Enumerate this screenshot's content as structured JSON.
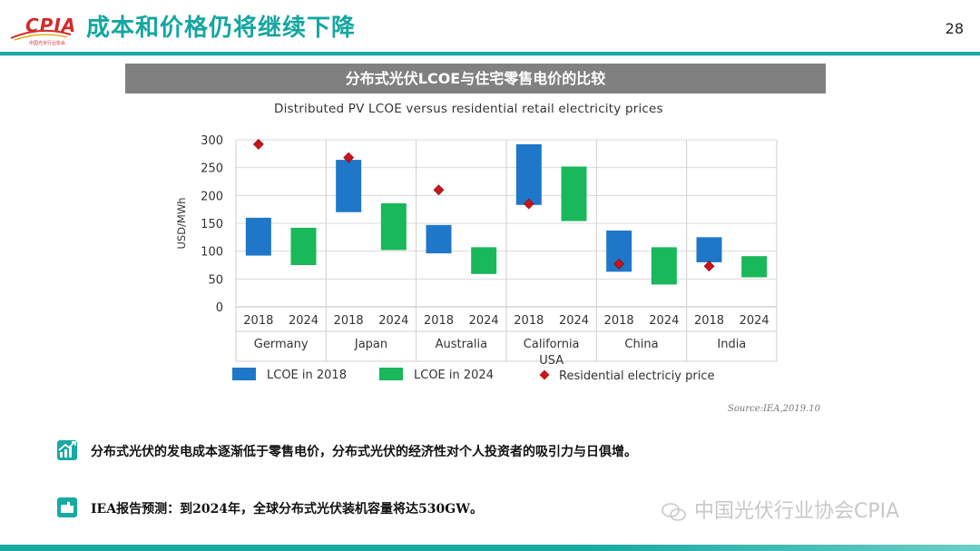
{
  "header": {
    "logo_text": "CPIA",
    "logo_sub": "中国光伏行业协会",
    "title": "成本和价格仍将继续下降",
    "page_number": "28"
  },
  "figure": {
    "banner_title": "分布式光伏LCOE与住宅零售电价的比较",
    "source": "Source:IEA,2019.10"
  },
  "chart_data": {
    "type": "floating-bar-with-markers",
    "title": "Distributed PV LCOE versus residential retail electricity prices",
    "ylabel": "USD/MWh",
    "ylim": [
      0,
      300
    ],
    "yticks": [
      0,
      50,
      100,
      150,
      200,
      250,
      300
    ],
    "grid": true,
    "groups": [
      "Germany",
      "Japan",
      "Australia",
      "California USA",
      "China",
      "India"
    ],
    "group_labels": [
      [
        "Germany"
      ],
      [
        "Japan"
      ],
      [
        "Australia"
      ],
      [
        "California",
        "USA"
      ],
      [
        "China"
      ],
      [
        "India"
      ]
    ],
    "years": [
      "2018",
      "2024"
    ],
    "series": [
      {
        "name": "LCOE in 2018",
        "color": "#1f77c9",
        "ranges": [
          [
            92,
            160
          ],
          [
            170,
            264
          ],
          [
            96,
            147
          ],
          [
            183,
            292
          ],
          [
            63,
            137
          ],
          [
            80,
            125
          ]
        ]
      },
      {
        "name": "LCOE in 2024",
        "color": "#19b85a",
        "ranges": [
          [
            75,
            142
          ],
          [
            102,
            186
          ],
          [
            59,
            107
          ],
          [
            154,
            252
          ],
          [
            40,
            107
          ],
          [
            53,
            91
          ]
        ]
      },
      {
        "name": "Residential electriciy price",
        "color": "#c8151b",
        "values": [
          292,
          268,
          210,
          185,
          77,
          73
        ]
      }
    ],
    "legend": [
      "LCOE in 2018",
      "LCOE in 2024",
      "Residential electriciy price"
    ]
  },
  "bullets": [
    {
      "text": "分布式光伏的发电成本逐渐低于零售电价，分布式光伏的经济性对个人投资者的吸引力与日俱增。",
      "icon": "chart-growth-icon"
    },
    {
      "text": "IEA报告预测：到2024年，全球分布式光伏装机容量将达530GW。",
      "icon": "hand-icon"
    }
  ],
  "watermark": "中国光伏行业协会CPIA",
  "colors": {
    "teal": "#17a9a3",
    "blue": "#1f77c9",
    "green": "#19b85a",
    "red": "#c8151b"
  }
}
